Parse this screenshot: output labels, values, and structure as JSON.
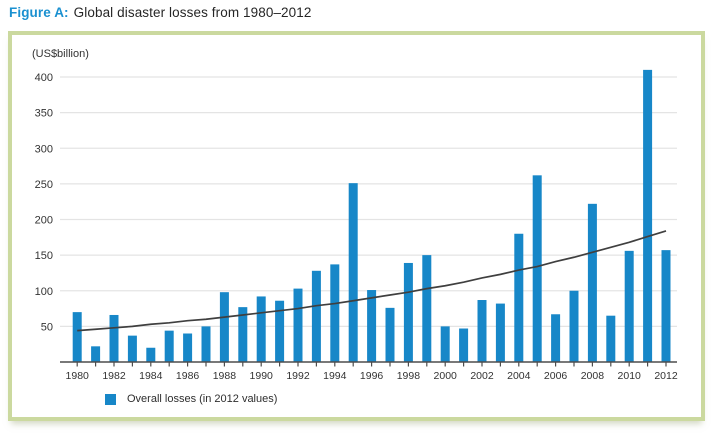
{
  "figure": {
    "label": "Figure A:",
    "title": "Global disaster losses from 1980–2012"
  },
  "colors": {
    "bar": "#1787c8",
    "accent_blue": "#1a90d0",
    "frame_green": "#cbd99f",
    "gridline": "#e4e4e4",
    "axis": "#4d4d4d",
    "trend": "#3f3f3f",
    "text": "#333333"
  },
  "chart_data": {
    "type": "bar",
    "title": "Global disaster losses from 1980–2012",
    "unit_label": "(US$billion)",
    "xlabel": "",
    "ylabel": "(US$billion)",
    "ylim": [
      0,
      420
    ],
    "yticks": [
      50,
      100,
      150,
      200,
      250,
      300,
      350,
      400
    ],
    "grid": true,
    "x_tick_label_step": 2,
    "legend": {
      "position": "bottom-left",
      "label": "Overall losses (in 2012 values)"
    },
    "categories": [
      1980,
      1981,
      1982,
      1983,
      1984,
      1985,
      1986,
      1987,
      1988,
      1989,
      1990,
      1991,
      1992,
      1993,
      1994,
      1995,
      1996,
      1997,
      1998,
      1999,
      2000,
      2001,
      2002,
      2003,
      2004,
      2005,
      2006,
      2007,
      2008,
      2009,
      2010,
      2011,
      2012
    ],
    "series": [
      {
        "name": "Overall losses (in 2012 values)",
        "type": "bar",
        "values": [
          70,
          22,
          66,
          37,
          20,
          44,
          40,
          50,
          98,
          77,
          92,
          86,
          103,
          128,
          137,
          251,
          101,
          76,
          139,
          150,
          50,
          47,
          87,
          82,
          180,
          262,
          67,
          100,
          222,
          65,
          156,
          410,
          157
        ]
      },
      {
        "name": "Trend line (smoothed trend of overall losses)",
        "type": "line",
        "values": [
          44,
          46,
          48,
          50,
          53,
          55,
          58,
          60,
          63,
          66,
          69,
          72,
          75,
          79,
          82,
          86,
          90,
          94,
          98,
          103,
          107,
          112,
          118,
          123,
          129,
          134,
          141,
          147,
          154,
          161,
          168,
          176,
          184
        ]
      }
    ]
  }
}
